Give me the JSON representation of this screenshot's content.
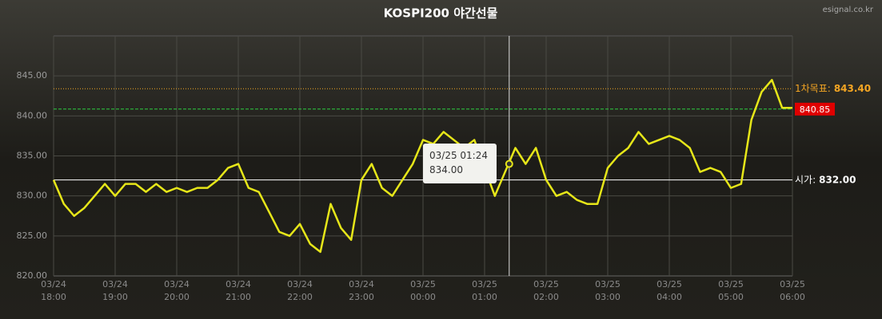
{
  "chart_data": {
    "type": "line",
    "title": "KOSPI200 야간선물",
    "source": "esignal.co.kr",
    "x": [
      "03/24 18:00",
      "03/24 18:10",
      "03/24 18:20",
      "03/24 18:30",
      "03/24 18:40",
      "03/24 18:50",
      "03/24 19:00",
      "03/24 19:10",
      "03/24 19:20",
      "03/24 19:30",
      "03/24 19:40",
      "03/24 19:50",
      "03/24 20:00",
      "03/24 20:10",
      "03/24 20:20",
      "03/24 20:30",
      "03/24 20:40",
      "03/24 20:50",
      "03/24 21:00",
      "03/24 21:10",
      "03/24 21:20",
      "03/24 21:30",
      "03/24 21:40",
      "03/24 21:50",
      "03/24 22:00",
      "03/24 22:10",
      "03/24 22:20",
      "03/24 22:30",
      "03/24 22:40",
      "03/24 22:50",
      "03/24 23:00",
      "03/24 23:10",
      "03/24 23:20",
      "03/24 23:30",
      "03/24 23:40",
      "03/24 23:50",
      "03/25 00:00",
      "03/25 00:10",
      "03/25 00:20",
      "03/25 00:30",
      "03/25 00:40",
      "03/25 00:50",
      "03/25 01:00",
      "03/25 01:10",
      "03/25 01:20",
      "03/25 01:30",
      "03/25 01:40",
      "03/25 01:50",
      "03/25 02:00",
      "03/25 02:10",
      "03/25 02:20",
      "03/25 02:30",
      "03/25 02:40",
      "03/25 02:50",
      "03/25 03:00",
      "03/25 03:10",
      "03/25 03:20",
      "03/25 03:30",
      "03/25 03:40",
      "03/25 03:50",
      "03/25 04:00",
      "03/25 04:10",
      "03/25 04:20",
      "03/25 04:30",
      "03/25 04:40",
      "03/25 04:50",
      "03/25 05:00",
      "03/25 05:10",
      "03/25 05:20",
      "03/25 05:30",
      "03/25 05:40",
      "03/25 05:50",
      "03/25 06:00"
    ],
    "values": [
      832,
      829,
      827.5,
      828.5,
      830,
      831.5,
      830,
      831.5,
      831.5,
      830.5,
      831.5,
      830.5,
      831,
      830.5,
      831,
      831,
      832,
      833.5,
      834,
      831,
      830.5,
      828,
      825.5,
      825,
      826.5,
      824,
      823,
      829,
      826,
      824.5,
      832,
      834,
      831,
      830,
      832,
      834,
      837,
      836.5,
      838,
      837,
      836,
      837,
      833.5,
      830,
      833,
      836,
      834,
      836,
      832,
      830,
      830.5,
      829.5,
      829,
      829,
      833.5,
      835,
      836,
      838,
      836.5,
      837,
      837.5,
      837,
      836,
      833,
      833.5,
      833,
      831,
      831.5,
      839.5,
      843,
      844.5,
      841,
      841
    ],
    "color": "#e6e619",
    "xlim": [
      "03/24 18:00",
      "03/25 06:00"
    ],
    "xticks": [
      {
        "value": "03/24 18:00",
        "label": "03/24\n18:00"
      },
      {
        "value": "03/24 19:00",
        "label": "03/24\n19:00"
      },
      {
        "value": "03/24 20:00",
        "label": "03/24\n20:00"
      },
      {
        "value": "03/24 21:00",
        "label": "03/24\n21:00"
      },
      {
        "value": "03/24 22:00",
        "label": "03/24\n22:00"
      },
      {
        "value": "03/24 23:00",
        "label": "03/24\n23:00"
      },
      {
        "value": "03/25 00:00",
        "label": "03/25\n00:00"
      },
      {
        "value": "03/25 01:00",
        "label": "03/25\n01:00"
      },
      {
        "value": "03/25 02:00",
        "label": "03/25\n02:00"
      },
      {
        "value": "03/25 03:00",
        "label": "03/25\n03:00"
      },
      {
        "value": "03/25 04:00",
        "label": "03/25\n04:00"
      },
      {
        "value": "03/25 05:00",
        "label": "03/25\n05:00"
      },
      {
        "value": "03/25 06:00",
        "label": "03/25\n06:00"
      }
    ],
    "ylim": [
      820,
      850
    ],
    "yticks": [
      {
        "value": 820,
        "label": "820.00"
      },
      {
        "value": 825,
        "label": "825.00"
      },
      {
        "value": 830,
        "label": "830.00"
      },
      {
        "value": 835,
        "label": "835.00"
      },
      {
        "value": 840,
        "label": "840.00"
      },
      {
        "value": 845,
        "label": "845.00"
      }
    ],
    "grid": true,
    "reference_lines": [
      {
        "name": "1차목표:",
        "value": 843.4,
        "value_label": "843.40",
        "color": "#f5a623",
        "style": "dotted"
      },
      {
        "value": 840.85,
        "value_label": "840.85",
        "color": "#2ecc40",
        "style": "dashed",
        "badge": "#e00000"
      },
      {
        "name": "시가:",
        "value": 832,
        "value_label": "832.00",
        "color": "#ffffff",
        "style": "solid"
      }
    ],
    "tooltip": {
      "x": "03/25 01:24",
      "value": 834,
      "value_label": "834.00"
    }
  }
}
